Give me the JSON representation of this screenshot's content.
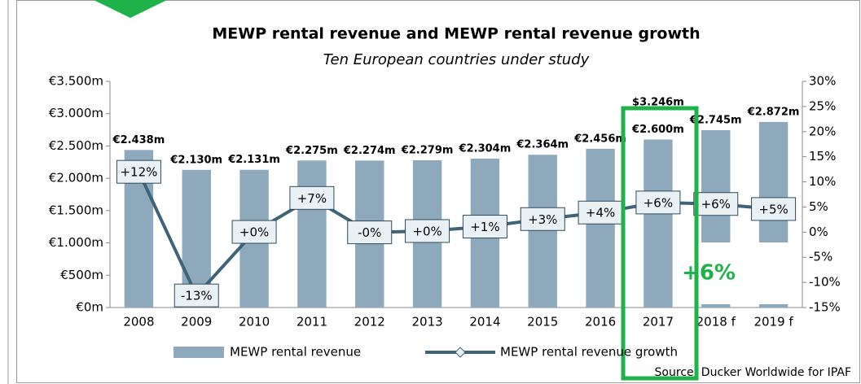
{
  "chart_data": {
    "type": "bar",
    "title": "MEWP rental revenue and MEWP rental revenue growth",
    "subtitle": "Ten European countries under study",
    "categories": [
      "2008",
      "2009",
      "2010",
      "2011",
      "2012",
      "2013",
      "2014",
      "2015",
      "2016",
      "2017",
      "2018 f",
      "2019 f"
    ],
    "series": [
      {
        "name": "MEWP rental revenue",
        "type": "bar",
        "color": "#8ea9bb",
        "values": [
          2438,
          2130,
          2131,
          2275,
          2274,
          2279,
          2304,
          2364,
          2456,
          2600,
          2745,
          2872
        ],
        "value_labels": [
          "€2.438m",
          "€2.130m",
          "€2.131m",
          "€2.275m",
          "€2.274m",
          "€2.279m",
          "€2.304m",
          "€2.364m",
          "€2.456m",
          "€2.600m",
          "€2.745m",
          "€2.872m"
        ]
      },
      {
        "name": "MEWP rental revenue growth",
        "type": "line",
        "axis": "y2",
        "color": "#3f6479",
        "values": [
          12,
          -12.6,
          0.05,
          6.8,
          -0.04,
          0.22,
          1.1,
          2.6,
          3.9,
          5.9,
          5.6,
          4.6
        ],
        "value_labels": [
          "+12%",
          "-13%",
          "+0%",
          "+7%",
          "-0%",
          "+0%",
          "+1%",
          "+3%",
          "+4%",
          "+6%",
          "+6%",
          "+5%"
        ]
      }
    ],
    "ylim": [
      0,
      3500
    ],
    "yticks": [
      {
        "value": 0,
        "label": "€0m"
      },
      {
        "value": 500,
        "label": "€500m"
      },
      {
        "value": 1000,
        "label": "€1.000m"
      },
      {
        "value": 1500,
        "label": "€1.500m"
      },
      {
        "value": 2000,
        "label": "€2.000m"
      },
      {
        "value": 2500,
        "label": "€2.500m"
      },
      {
        "value": 3000,
        "label": "€3.000m"
      },
      {
        "value": 3500,
        "label": "€3.500m"
      }
    ],
    "y2lim": [
      -15,
      30
    ],
    "y2ticks": [
      {
        "value": -15,
        "label": "-15%"
      },
      {
        "value": -10,
        "label": "-10%"
      },
      {
        "value": -5,
        "label": "-5%"
      },
      {
        "value": 0,
        "label": "0%"
      },
      {
        "value": 5,
        "label": "5%"
      },
      {
        "value": 10,
        "label": "10%"
      },
      {
        "value": 15,
        "label": "15%"
      },
      {
        "value": 20,
        "label": "20%"
      },
      {
        "value": 25,
        "label": "25%"
      },
      {
        "value": 30,
        "label": "30%"
      }
    ],
    "annotations": [
      "$3.246m",
      "+6%"
    ],
    "legend": "bottom",
    "source": "Source: Ducker Worldwide for IPAF"
  }
}
